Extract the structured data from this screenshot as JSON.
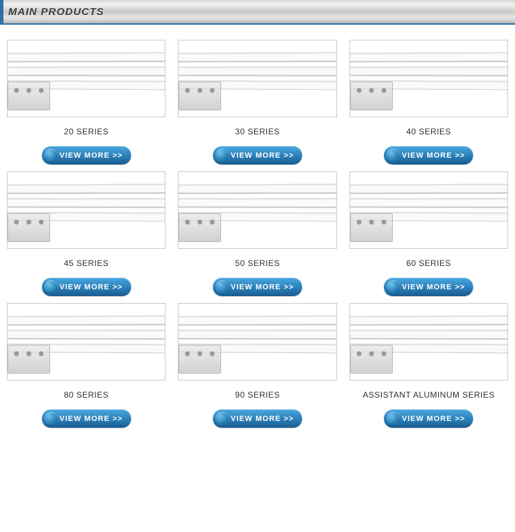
{
  "header": {
    "title": "MAIN PRODUCTS"
  },
  "button_label": "VIEW MORE >>",
  "colors": {
    "accent": "#2f6fa3",
    "button_gradient_top": "#49a8e0",
    "button_gradient_mid": "#2b7fb8",
    "button_gradient_bottom": "#185a8e",
    "border": "#c9c9c9",
    "text": "#2d2d2d"
  },
  "products": [
    {
      "label": "20 SERIES"
    },
    {
      "label": "30 SERIES"
    },
    {
      "label": "40 SERIES"
    },
    {
      "label": "45 SERIES"
    },
    {
      "label": "50 SERIES"
    },
    {
      "label": "60 SERIES"
    },
    {
      "label": "80 SERIES"
    },
    {
      "label": "90 SERIES"
    },
    {
      "label": "ASSISTANT ALUMINUM SERIES"
    }
  ]
}
